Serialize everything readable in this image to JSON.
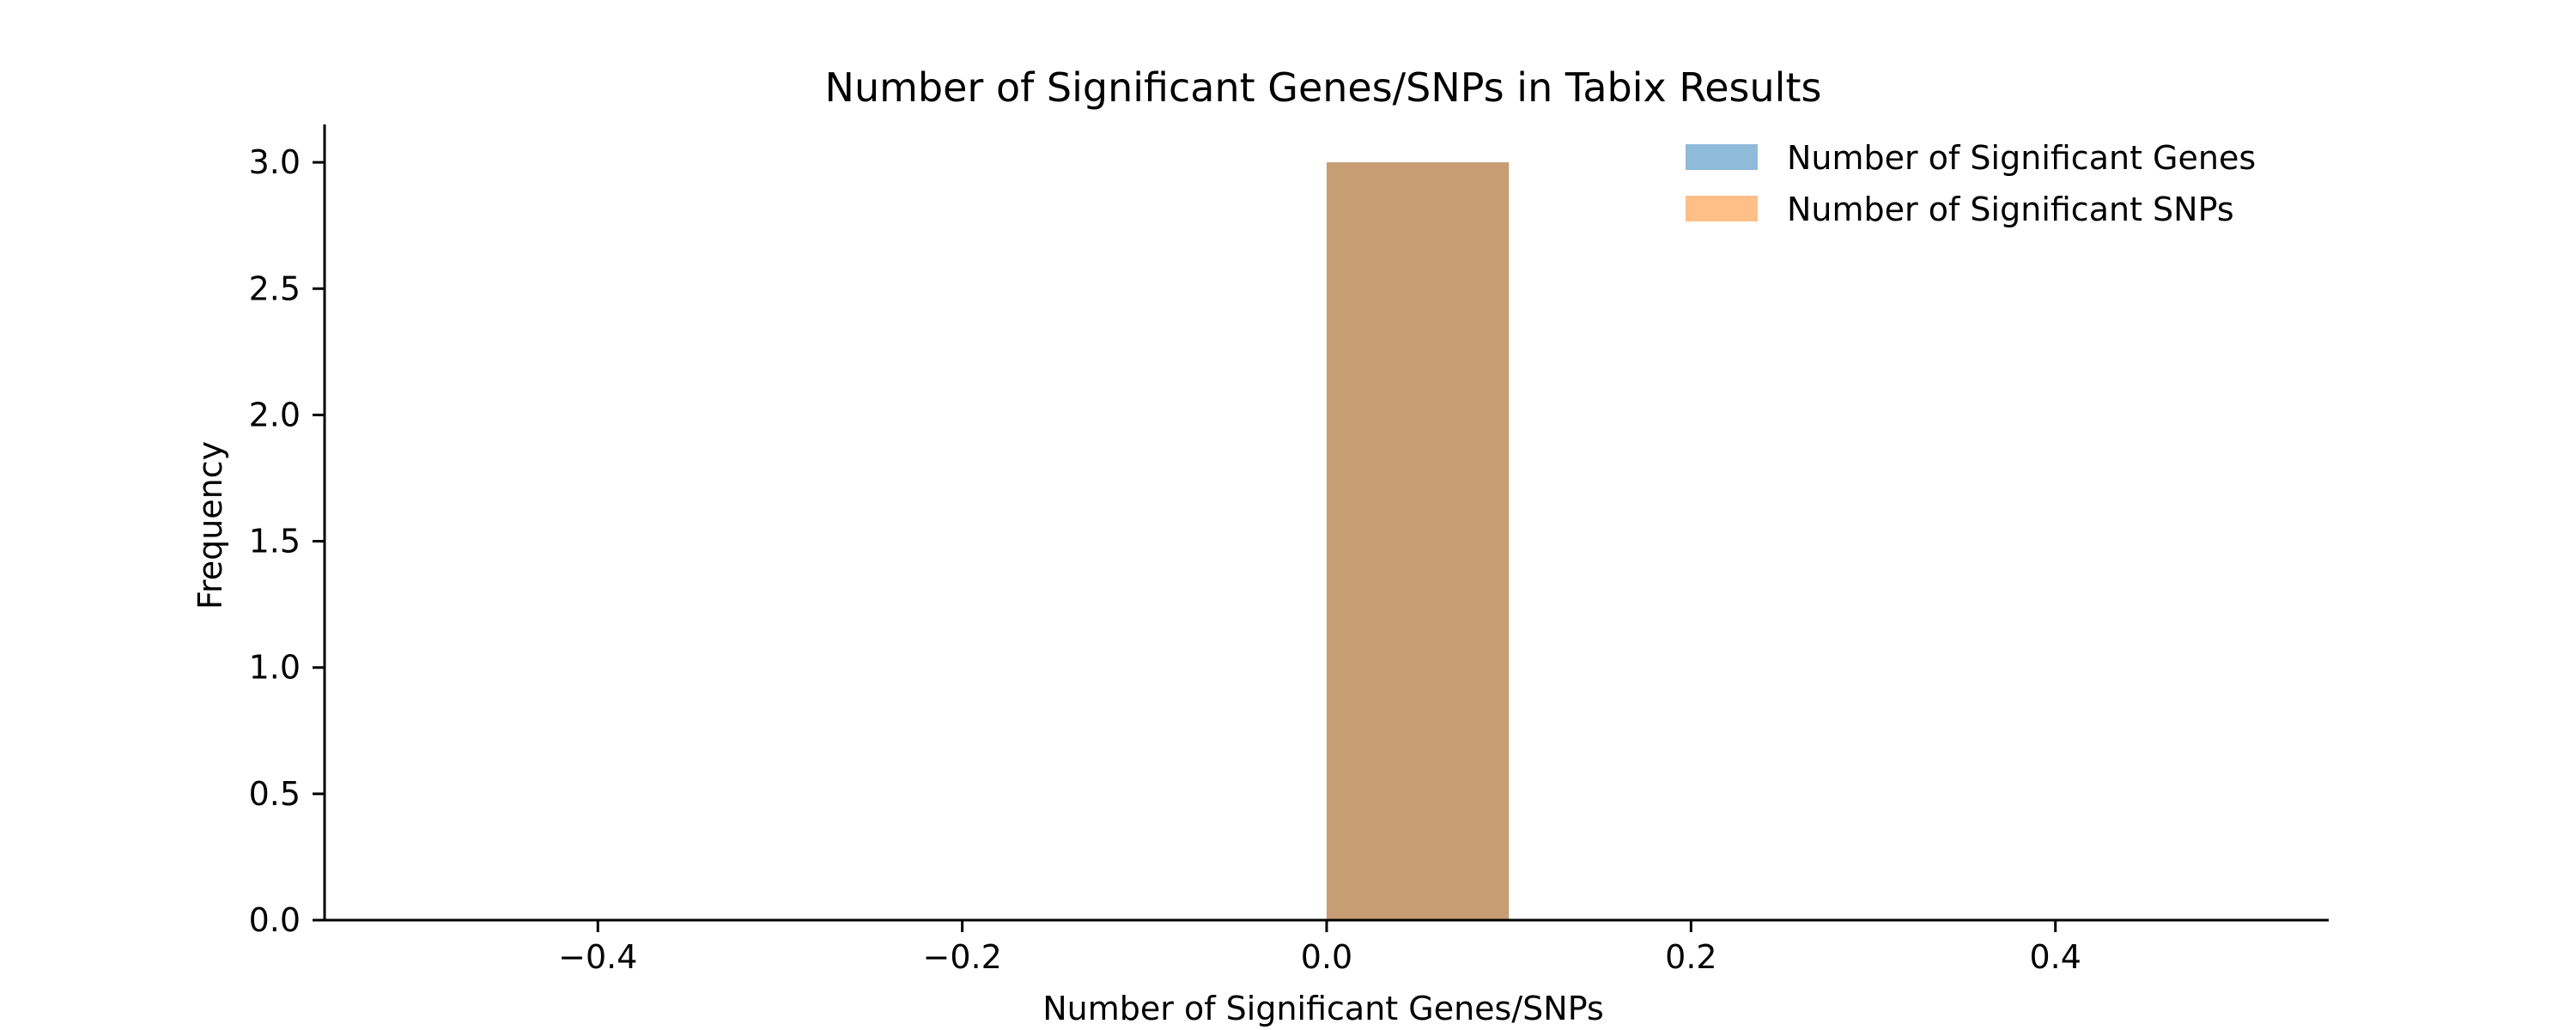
{
  "chart_data": {
    "type": "bar",
    "title": "Number of Significant Genes/SNPs in Tabix Results",
    "xlabel": "Number of Significant Genes/SNPs",
    "ylabel": "Frequency",
    "xlim": [
      -0.55,
      0.55
    ],
    "ylim": [
      0,
      3.15
    ],
    "xticks": [
      -0.4,
      -0.2,
      0.0,
      0.2,
      0.4
    ],
    "xtick_labels": [
      "−0.4",
      "−0.2",
      "0.0",
      "0.2",
      "0.4"
    ],
    "yticks": [
      0,
      0.5,
      1.0,
      1.5,
      2.0,
      2.5,
      3.0
    ],
    "ytick_labels": [
      "0.0",
      "0.5",
      "1.0",
      "1.5",
      "2.0",
      "2.5",
      "3.0"
    ],
    "grid": false,
    "legend_position": "top-right",
    "series": [
      {
        "name": "Number of Significant Genes",
        "color": "#1f77b4",
        "opacity": 0.5,
        "bins": [
          {
            "x0": 0.0,
            "x1": 0.1,
            "value": 3
          }
        ]
      },
      {
        "name": "Number of Significant SNPs",
        "color": "#ff7f0e",
        "opacity": 0.5,
        "bins": [
          {
            "x0": 0.0,
            "x1": 0.1,
            "value": 3
          }
        ]
      }
    ]
  }
}
